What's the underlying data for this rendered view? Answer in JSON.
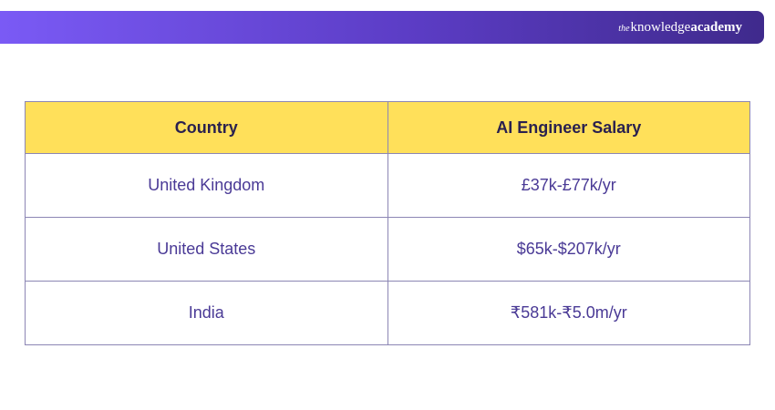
{
  "brand": {
    "prefix": "the",
    "name_regular": "knowledge",
    "name_bold": "academy"
  },
  "table": {
    "headers": [
      "Country",
      "AI Engineer Salary"
    ],
    "rows": [
      {
        "country": "United Kingdom",
        "salary": "£37k-£77k/yr"
      },
      {
        "country": "United States",
        "salary": "$65k-$207k/yr"
      },
      {
        "country": "India",
        "salary": "₹581k-₹5.0m/yr"
      }
    ]
  },
  "colors": {
    "header_bg": "#ffe05a",
    "banner_start": "#7a5af5",
    "banner_end": "#3f2a8c",
    "text": "#4a3a96",
    "border": "#8c86b4"
  }
}
